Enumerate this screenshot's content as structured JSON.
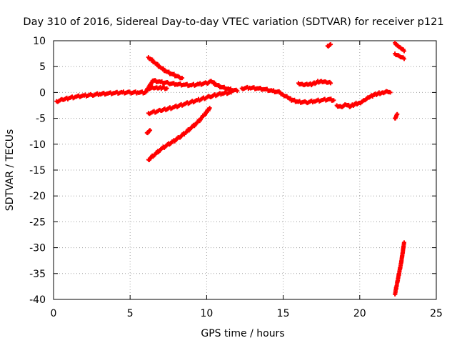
{
  "chart_data": {
    "type": "scatter",
    "title": "Day 310 of 2016, Sidereal Day-to-day VTEC variation (SDTVAR) for receiver p121",
    "xlabel": "GPS time / hours",
    "ylabel": "SDTVAR / TECUs",
    "xlim": [
      0,
      25
    ],
    "ylim": [
      -40,
      10
    ],
    "grid": true,
    "x_ticks": [
      0,
      5,
      10,
      15,
      20,
      25
    ],
    "y_ticks": [
      -40,
      -35,
      -30,
      -25,
      -20,
      -15,
      -10,
      -5,
      0,
      5,
      10
    ],
    "marker_color": "#ff0000",
    "series": [
      {
        "name": "main-trace",
        "x": [
          0.2,
          0.6,
          1.0,
          1.5,
          2.0,
          2.5,
          3.0,
          3.5,
          4.0,
          4.5,
          5.0,
          5.5,
          6.0,
          6.5,
          7.0,
          7.5,
          8.0,
          8.5,
          9.0,
          9.5,
          10.0,
          10.3,
          10.6,
          11.0,
          11.5,
          12.0
        ],
        "y": [
          -1.7,
          -1.4,
          -1.1,
          -0.8,
          -0.6,
          -0.5,
          -0.3,
          -0.2,
          -0.1,
          0.0,
          0.0,
          0.0,
          0.0,
          2.3,
          2.0,
          1.8,
          1.6,
          1.5,
          1.4,
          1.6,
          1.8,
          2.2,
          1.5,
          1.0,
          0.6,
          0.3
        ]
      },
      {
        "name": "trace-12-15h",
        "x": [
          12.3,
          12.8,
          13.3,
          13.8,
          14.3,
          14.8,
          15.0,
          15.3,
          15.6,
          16.0,
          16.5,
          17.0,
          17.5,
          18.0,
          18.3
        ],
        "y": [
          0.8,
          0.9,
          0.8,
          0.6,
          0.3,
          0.0,
          -0.5,
          -1.0,
          -1.5,
          -1.8,
          -1.9,
          -1.7,
          -1.5,
          -1.3,
          -1.5
        ]
      },
      {
        "name": "trace-18-21h",
        "x": [
          18.5,
          18.8,
          19.1,
          19.4,
          19.7,
          20.0,
          20.3,
          20.6,
          20.9,
          21.2,
          21.5,
          21.8,
          22.0
        ],
        "y": [
          -2.5,
          -2.8,
          -2.4,
          -2.7,
          -2.2,
          -2.0,
          -1.5,
          -1.0,
          -0.5,
          -0.2,
          0.0,
          0.2,
          0.0
        ]
      },
      {
        "name": "arc-16-18h",
        "x": [
          16.0,
          16.3,
          16.6,
          16.9,
          17.2,
          17.5,
          17.8,
          18.1
        ],
        "y": [
          1.8,
          1.5,
          1.5,
          1.6,
          2.0,
          2.2,
          2.0,
          1.8
        ]
      },
      {
        "name": "decline-6h",
        "x": [
          6.2,
          6.6,
          7.0,
          7.4,
          7.8,
          8.2,
          8.4
        ],
        "y": [
          6.8,
          5.8,
          4.8,
          4.0,
          3.5,
          3.0,
          2.8
        ]
      },
      {
        "name": "short-segment-6h",
        "x": [
          6.2,
          6.5,
          6.8,
          7.1,
          7.4
        ],
        "y": [
          0.8,
          0.9,
          0.8,
          0.9,
          0.8
        ]
      },
      {
        "name": "rise-6h",
        "x": [
          6.2,
          7.0,
          7.8,
          8.6,
          9.4,
          10.2,
          11.0,
          11.6
        ],
        "y": [
          -4.0,
          -3.5,
          -2.9,
          -2.2,
          -1.5,
          -0.8,
          -0.2,
          0.0
        ]
      },
      {
        "name": "steep-rise-6h",
        "x": [
          6.2,
          6.6,
          7.0,
          7.4,
          7.8,
          8.2,
          8.6,
          9.0,
          9.4,
          9.8,
          10.2
        ],
        "y": [
          -13.0,
          -12.0,
          -11.0,
          -10.2,
          -9.5,
          -8.7,
          -7.8,
          -6.8,
          -5.8,
          -4.5,
          -3.0
        ]
      },
      {
        "name": "isolated-6h",
        "x": [
          6.1,
          6.3
        ],
        "y": [
          -7.8,
          -7.3
        ]
      },
      {
        "name": "isolated-18h",
        "x": [
          17.9,
          18.1
        ],
        "y": [
          9.0,
          9.3
        ]
      },
      {
        "name": "upper-22h",
        "x": [
          22.3,
          22.5,
          22.7,
          22.9
        ],
        "y": [
          9.6,
          9.0,
          8.5,
          8.0
        ]
      },
      {
        "name": "upper-22h-b",
        "x": [
          22.3,
          22.6,
          22.9
        ],
        "y": [
          7.5,
          7.0,
          6.5
        ]
      },
      {
        "name": "mid-22h",
        "x": [
          22.3,
          22.45
        ],
        "y": [
          -5.0,
          -4.2
        ]
      },
      {
        "name": "deep-drop-22h",
        "x": [
          22.3,
          22.4,
          22.5,
          22.6,
          22.7,
          22.8,
          22.9
        ],
        "y": [
          -39.0,
          -37.5,
          -36.0,
          -34.5,
          -33.0,
          -31.0,
          -29.0
        ]
      }
    ]
  }
}
